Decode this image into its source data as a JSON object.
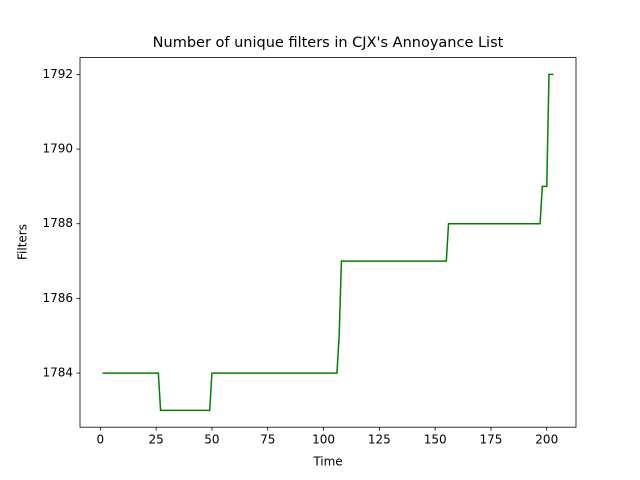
{
  "chart_data": {
    "type": "line",
    "title": "Number of unique filters in CJX's Annoyance List",
    "x_label": "Time",
    "y_label": "Filters",
    "x": [
      1,
      26,
      27,
      49,
      50,
      106,
      107,
      108,
      155,
      156,
      197,
      198,
      200,
      201,
      203
    ],
    "series": [
      {
        "name": "Filters",
        "color": "#008000",
        "values": [
          1784,
          1784,
          1783,
          1783,
          1784,
          1784,
          1785,
          1787,
          1787,
          1788,
          1788,
          1789,
          1789,
          1792,
          1792
        ]
      }
    ],
    "xlim": [
      -9.1,
      213.1
    ],
    "xticks": [
      0,
      25,
      50,
      75,
      100,
      125,
      150,
      175,
      200
    ],
    "ylim": [
      1782.55,
      1792.45
    ],
    "yticks": [
      1784,
      1786,
      1788,
      1790,
      1792
    ],
    "grid": false
  }
}
